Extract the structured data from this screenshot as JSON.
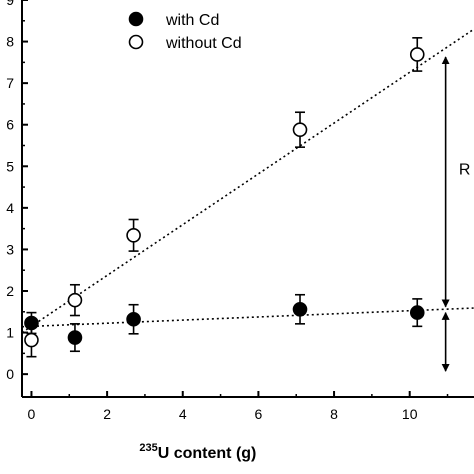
{
  "chart_data": {
    "type": "scatter",
    "xlabel_sup": "235",
    "xlabel": "U content (g)",
    "ylabel": "",
    "xlim": [
      -0.25,
      11.7
    ],
    "ylim": [
      -0.55,
      9.0
    ],
    "xticks": [
      0,
      2,
      4,
      6,
      8,
      10
    ],
    "xtick_labels": [
      "0",
      "2",
      "4",
      "6",
      "8",
      "10"
    ],
    "yticks": [
      0,
      1,
      2,
      3,
      4,
      5,
      6,
      7,
      8,
      9
    ],
    "ytick_labels": [
      "0",
      "1",
      "2",
      "3",
      "4",
      "5",
      "6",
      "7",
      "8",
      "9"
    ],
    "grid": false,
    "legend_position": "top-left",
    "series": [
      {
        "name": "with Cd",
        "marker": "filled-circle",
        "color": "#000000",
        "points": [
          {
            "x": 0.0,
            "y": 1.23,
            "err": 0.25
          },
          {
            "x": 1.15,
            "y": 0.88,
            "err": 0.33
          },
          {
            "x": 2.7,
            "y": 1.32,
            "err": 0.35
          },
          {
            "x": 7.1,
            "y": 1.56,
            "err": 0.35
          },
          {
            "x": 10.2,
            "y": 1.48,
            "err": 0.33
          }
        ],
        "fit": {
          "style": "dotted",
          "x": [
            -0.25,
            11.7
          ],
          "y": [
            1.14,
            1.59
          ]
        }
      },
      {
        "name": "without Cd",
        "marker": "open-circle",
        "color": "#000000",
        "points": [
          {
            "x": 0.0,
            "y": 0.82,
            "err": 0.4
          },
          {
            "x": 1.15,
            "y": 1.78,
            "err": 0.37
          },
          {
            "x": 2.7,
            "y": 3.34,
            "err": 0.38
          },
          {
            "x": 7.1,
            "y": 5.88,
            "err": 0.42
          },
          {
            "x": 10.2,
            "y": 7.69,
            "err": 0.4
          }
        ],
        "fit": {
          "style": "dotted",
          "x": [
            -0.25,
            11.7
          ],
          "y": [
            1.0,
            8.3
          ]
        }
      }
    ],
    "annotations": [
      {
        "type": "double-arrow",
        "x": 10.95,
        "y_from": 1.55,
        "y_to": 7.7
      },
      {
        "type": "double-arrow",
        "x": 10.95,
        "y_from": 0.0,
        "y_to": 1.55
      },
      {
        "type": "text",
        "text": "R",
        "x": 11.3,
        "y": 4.8
      }
    ]
  }
}
